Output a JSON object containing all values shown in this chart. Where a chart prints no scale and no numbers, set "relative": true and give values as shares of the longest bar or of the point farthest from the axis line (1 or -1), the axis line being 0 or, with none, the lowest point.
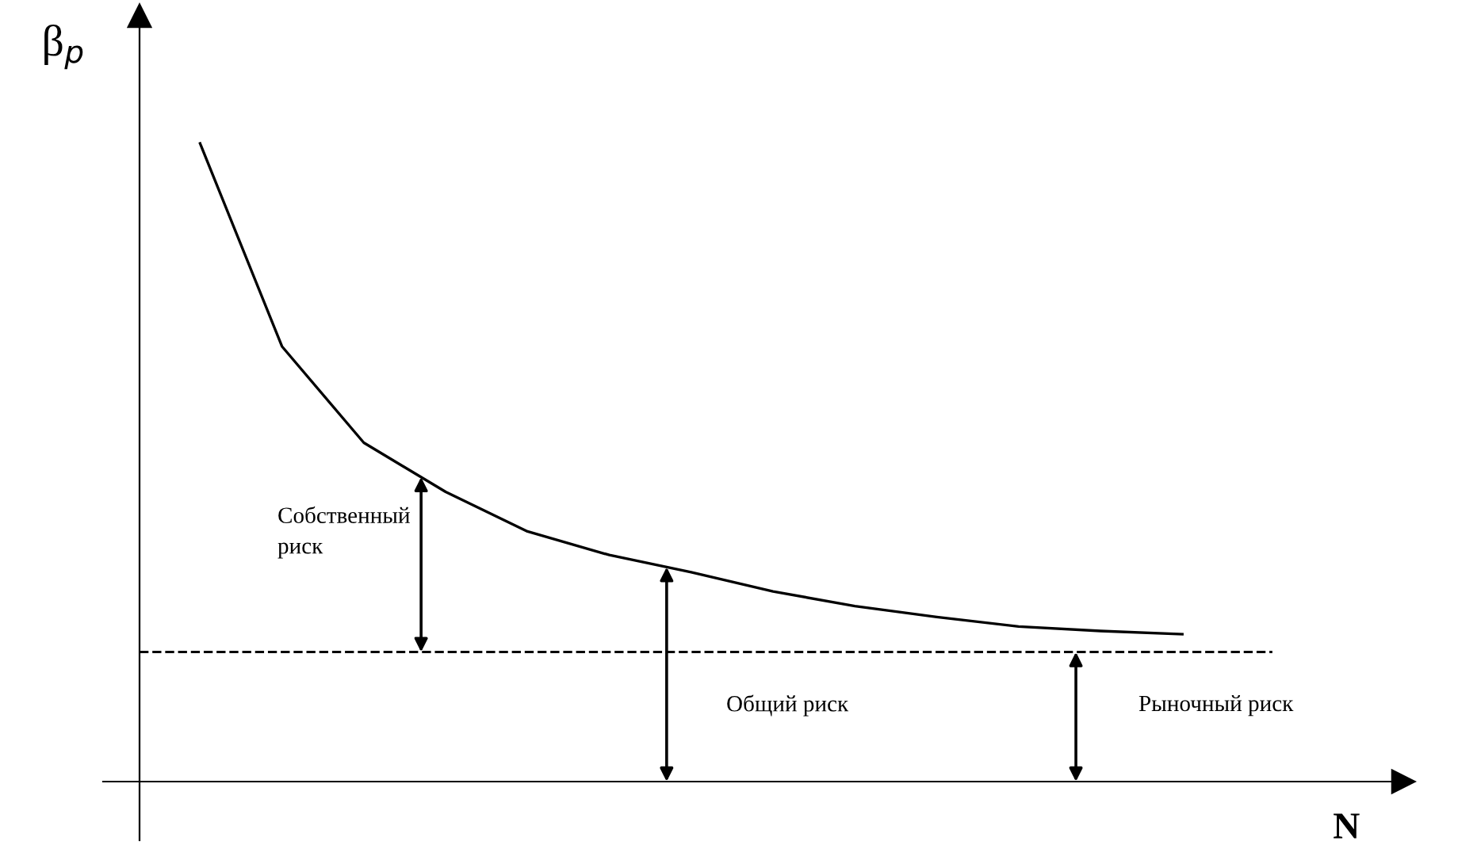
{
  "chart_data": {
    "type": "line",
    "relative": true,
    "ylabel": "β$_{p}$",
    "xlabel": "N",
    "categories": [
      null,
      null,
      null,
      null,
      null,
      null,
      null,
      null,
      null,
      null,
      null,
      null,
      null
    ],
    "series": [
      {
        "color": "#000000",
        "values": [
          1,
          0.682,
          0.531,
          0.454,
          0.392,
          0.355,
          0.328,
          0.298,
          0.275,
          0.258,
          0.243,
          0.236,
          0.231
        ]
      }
    ],
    "ref_lines": [
      {
        "axis": "y",
        "value": 0.203,
        "color": "#000000",
        "line_style": "dashed"
      }
    ],
    "annotations": [
      "Собственный\nриск",
      "Общий риск",
      "Рыночный риск"
    ],
    "legend": false,
    "marker": "none",
    "line_style": "solid"
  }
}
